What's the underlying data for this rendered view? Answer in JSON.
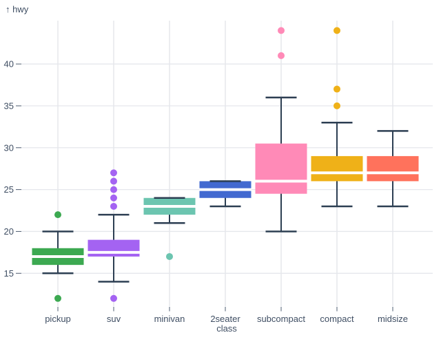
{
  "chart_data": {
    "type": "boxplot",
    "orientation": "vertical",
    "y_axis_label": "↑ hwy",
    "x_axis_label": "class",
    "categories": [
      "pickup",
      "suv",
      "minivan",
      "2seater",
      "subcompact",
      "compact",
      "midsize"
    ],
    "y_ticks": [
      15,
      20,
      25,
      30,
      35,
      40
    ],
    "y_domain": [
      11.1,
      45.2
    ],
    "grid": true,
    "legend": false,
    "series": [
      {
        "category": "pickup",
        "color": "#3ca951",
        "q1": 16,
        "median": 17,
        "q3": 18,
        "whisker_low": 15,
        "whisker_high": 20,
        "outliers": [
          22,
          12
        ]
      },
      {
        "category": "suv",
        "color": "#a463f2",
        "q1": 17,
        "median": 17.5,
        "q3": 19,
        "whisker_low": 14,
        "whisker_high": 22,
        "outliers": [
          23,
          24,
          25,
          26,
          27,
          12
        ]
      },
      {
        "category": "minivan",
        "color": "#6cc5b0",
        "q1": 22,
        "median": 23,
        "q3": 24,
        "whisker_low": 21,
        "whisker_high": 24,
        "outliers": [
          17
        ]
      },
      {
        "category": "2seater",
        "color": "#4269d0",
        "q1": 24,
        "median": 25,
        "q3": 26,
        "whisker_low": 23,
        "whisker_high": 26,
        "outliers": []
      },
      {
        "category": "subcompact",
        "color": "#ff8ab7",
        "q1": 24.5,
        "median": 26,
        "q3": 30.5,
        "whisker_low": 20,
        "whisker_high": 36,
        "outliers": [
          41,
          44
        ]
      },
      {
        "category": "compact",
        "color": "#efb118",
        "q1": 26,
        "median": 27,
        "q3": 29,
        "whisker_low": 23,
        "whisker_high": 33,
        "outliers": [
          35,
          37,
          44
        ]
      },
      {
        "category": "midsize",
        "color": "#ff725c",
        "q1": 26,
        "median": 27,
        "q3": 29,
        "whisker_low": 23,
        "whisker_high": 32,
        "outliers": []
      }
    ],
    "colors": {
      "axis_text": "#3f4e63",
      "axis_tick": "#4e5c70",
      "whisker": "#2c3e52",
      "grid": "#e5e7ec",
      "median": "#ffffff",
      "background": "#ffffff"
    }
  }
}
